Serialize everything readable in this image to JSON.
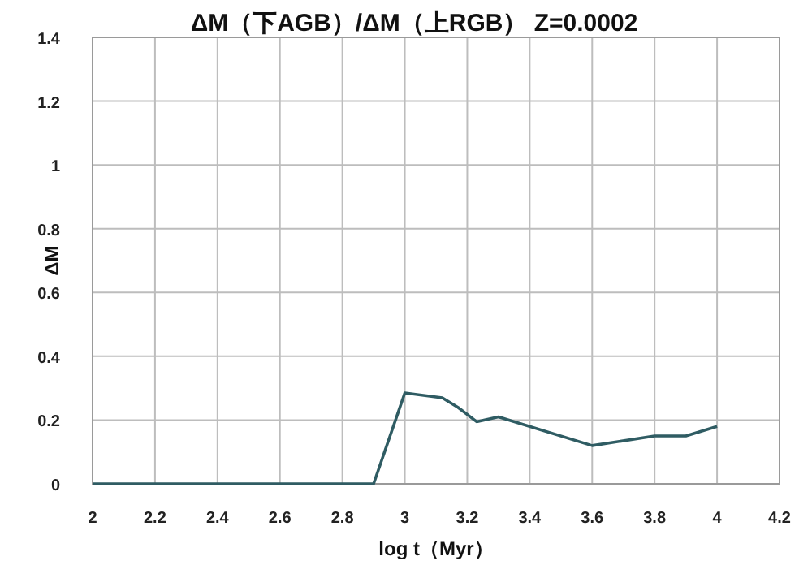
{
  "chart_data": {
    "type": "line",
    "title": "ΔM（下AGB）/ΔM（上RGB）  Z=0.0002",
    "xlabel": "log t（Myr）",
    "ylabel": "ΔM",
    "series": [
      {
        "color": "#2f5c63",
        "x": [
          2,
          2.9,
          3.0,
          3.12,
          3.17,
          3.23,
          3.3,
          3.6,
          3.8,
          3.9,
          4.0
        ],
        "values": [
          0,
          0,
          0.285,
          0.27,
          0.24,
          0.195,
          0.21,
          0.12,
          0.15,
          0.15,
          0.18
        ]
      }
    ],
    "xlim": [
      2,
      4.2
    ],
    "ylim": [
      0,
      1.4
    ],
    "xticks": [
      2,
      2.2,
      2.4,
      2.6,
      2.8,
      3,
      3.2,
      3.4,
      3.6,
      3.8,
      4,
      4.2
    ],
    "yticks": [
      0,
      0.2,
      0.4,
      0.6,
      0.8,
      1,
      1.2,
      1.4
    ],
    "grid": true,
    "line_style": "solid"
  }
}
